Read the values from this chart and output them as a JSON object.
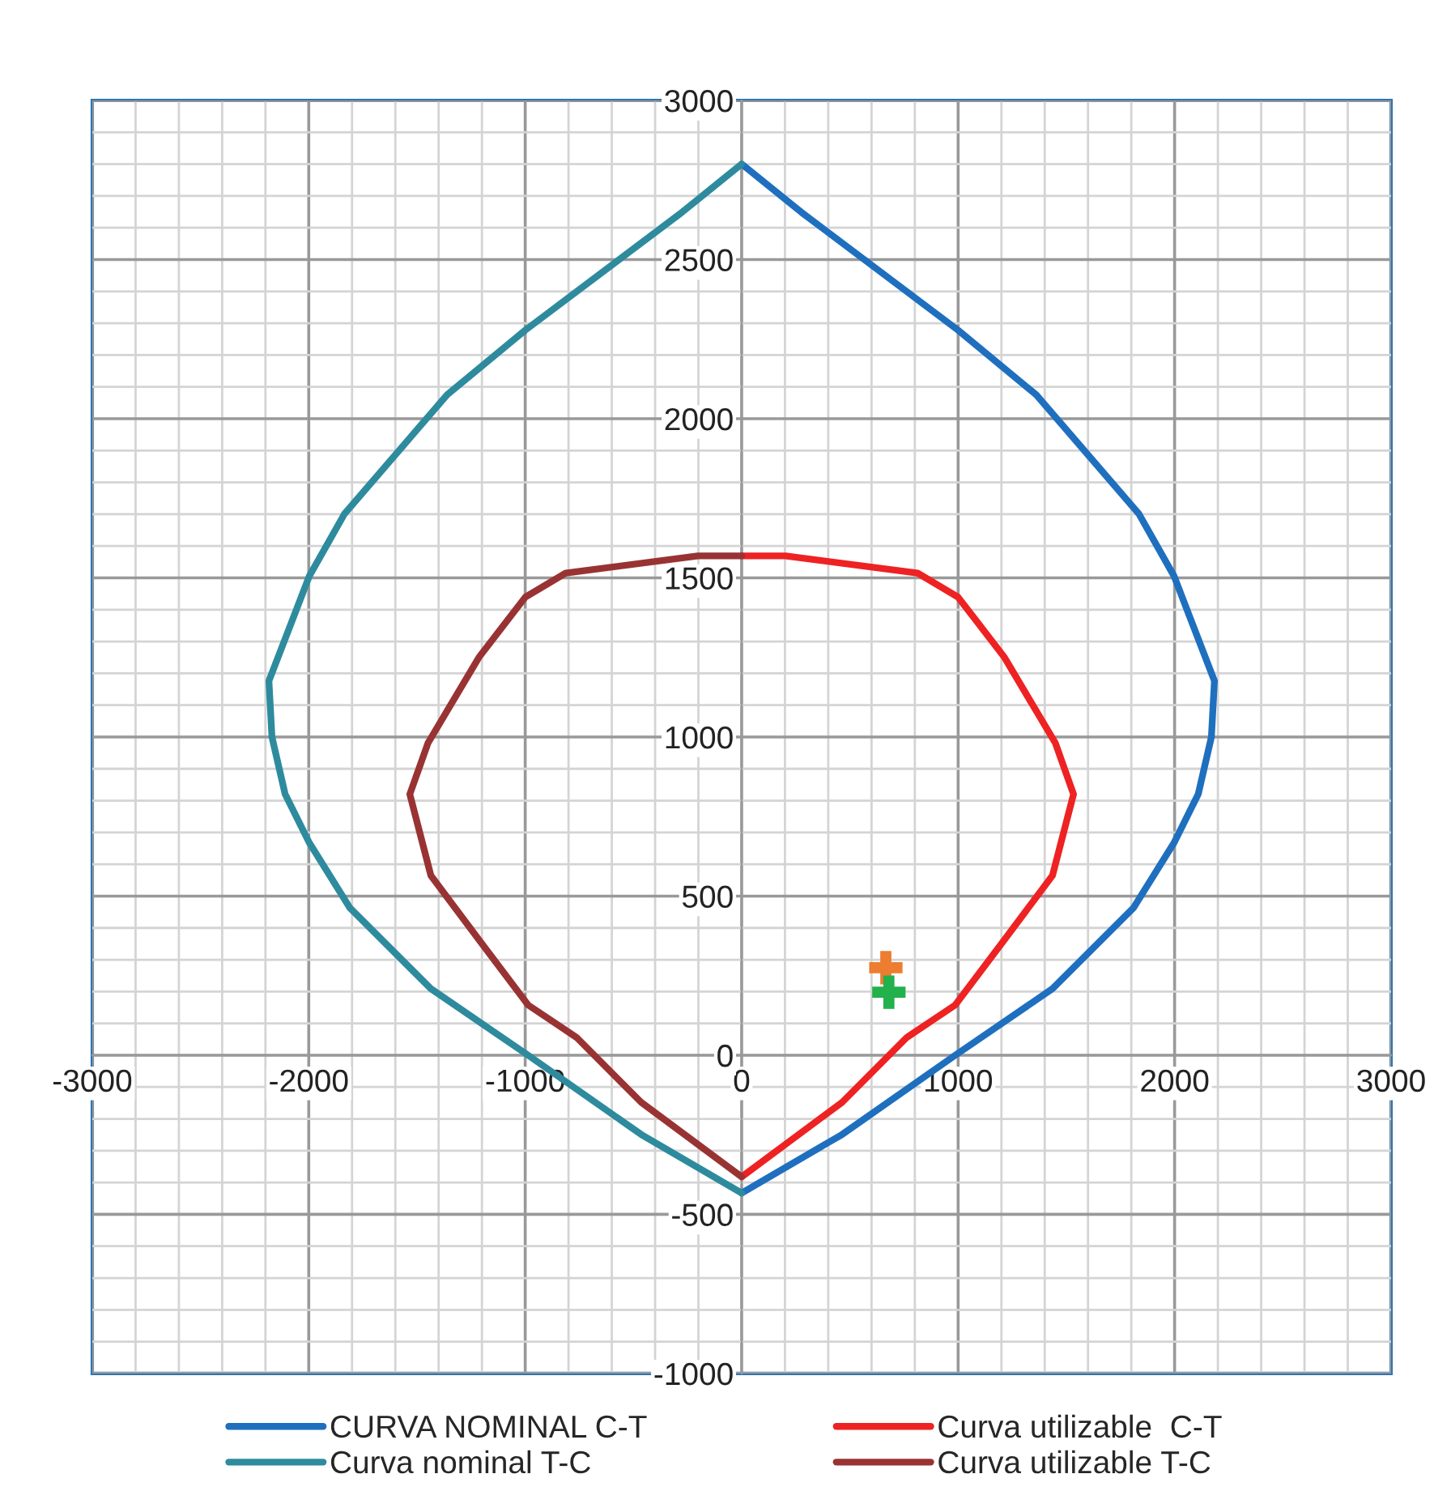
{
  "chart_data": {
    "type": "line",
    "xlim": [
      -3000,
      3000
    ],
    "ylim": [
      -1000,
      3000
    ],
    "xticks": [
      -3000,
      {
        "value": -2800,
        "label": null
      },
      {
        "value": -2600,
        "label": null
      },
      {
        "value": -2400,
        "label": null
      },
      {
        "value": -2200,
        "label": null
      },
      -2000,
      {
        "value": -1800,
        "label": null
      },
      {
        "value": -1600,
        "label": null
      },
      {
        "value": -1400,
        "label": null
      },
      {
        "value": -1200,
        "label": null
      },
      -1000,
      {
        "value": -800,
        "label": null
      },
      {
        "value": -600,
        "label": null
      },
      {
        "value": -400,
        "label": null
      },
      {
        "value": -200,
        "label": null
      },
      0,
      {
        "value": 200,
        "label": null
      },
      {
        "value": 400,
        "label": null
      },
      {
        "value": 600,
        "label": null
      },
      {
        "value": 800,
        "label": null
      },
      1000,
      {
        "value": 1200,
        "label": null
      },
      {
        "value": 1400,
        "label": null
      },
      {
        "value": 1600,
        "label": null
      },
      {
        "value": 1800,
        "label": null
      },
      2000,
      {
        "value": 2200,
        "label": null
      },
      {
        "value": 2400,
        "label": null
      },
      {
        "value": 2600,
        "label": null
      },
      {
        "value": 2800,
        "label": null
      },
      3000
    ],
    "yticks": [
      -1000,
      {
        "value": -900,
        "label": null
      },
      {
        "value": -800,
        "label": null
      },
      {
        "value": -700,
        "label": null
      },
      {
        "value": -600,
        "label": null
      },
      -500,
      {
        "value": -400,
        "label": null
      },
      {
        "value": -300,
        "label": null
      },
      {
        "value": -200,
        "label": null
      },
      {
        "value": -100,
        "label": null
      },
      0,
      {
        "value": 100,
        "label": null
      },
      {
        "value": 200,
        "label": null
      },
      {
        "value": 300,
        "label": null
      },
      {
        "value": 400,
        "label": null
      },
      500,
      {
        "value": 600,
        "label": null
      },
      {
        "value": 700,
        "label": null
      },
      {
        "value": 800,
        "label": null
      },
      {
        "value": 900,
        "label": null
      },
      1000,
      {
        "value": 1100,
        "label": null
      },
      {
        "value": 1200,
        "label": null
      },
      {
        "value": 1300,
        "label": null
      },
      {
        "value": 1400,
        "label": null
      },
      1500,
      {
        "value": 1600,
        "label": null
      },
      {
        "value": 1700,
        "label": null
      },
      {
        "value": 1800,
        "label": null
      },
      {
        "value": 1900,
        "label": null
      },
      2000,
      {
        "value": 2100,
        "label": null
      },
      {
        "value": 2200,
        "label": null
      },
      {
        "value": 2300,
        "label": null
      },
      {
        "value": 2400,
        "label": null
      },
      2500,
      {
        "value": 2600,
        "label": null
      },
      {
        "value": 2700,
        "label": null
      },
      {
        "value": 2800,
        "label": null
      },
      {
        "value": 2900,
        "label": null
      },
      3000
    ],
    "grid": true,
    "legend": "bottom",
    "marker": "none",
    "line_style": "solid",
    "series": [
      {
        "name": "CURVA NOMINAL C-T",
        "color": "#1f6fbf",
        "x": [
          0,
          277,
          1000,
          1361,
          1835,
          1997,
          2184,
          2170,
          2109,
          1997,
          1810,
          1436,
          987,
          464,
          0
        ],
        "values": [
          2800,
          2648,
          2278,
          2075,
          1701,
          1506,
          1176,
          1000,
          820,
          667,
          463,
          209,
          0,
          -249,
          -433
        ]
      },
      {
        "name": "Curva nominal T-C",
        "color": "#2e8b9e",
        "x": [
          0,
          -277,
          -1000,
          -1361,
          -1835,
          -1997,
          -2184,
          -2170,
          -2109,
          -1997,
          -1810,
          -1436,
          -987,
          -464,
          0
        ],
        "values": [
          2800,
          2648,
          2278,
          2075,
          1701,
          1506,
          1176,
          1000,
          820,
          667,
          463,
          209,
          0,
          -249,
          -433
        ]
      },
      {
        "name": "Curva utilizable  C-T",
        "color": "#ee2222",
        "x": [
          0,
          202,
          813,
          1000,
          1212,
          1449,
          1533,
          1436,
          1212,
          987,
          763,
          464,
          0
        ],
        "values": [
          1569,
          1569,
          1515,
          1439,
          1252,
          981,
          820,
          565,
          361,
          158,
          56,
          -148,
          -382
        ]
      },
      {
        "name": "Curva utilizable T-C",
        "color": "#993333",
        "x": [
          0,
          -202,
          -813,
          -1000,
          -1212,
          -1449,
          -1533,
          -1436,
          -1212,
          -987,
          -763,
          -464,
          0
        ],
        "values": [
          1569,
          1569,
          1515,
          1439,
          1252,
          981,
          820,
          565,
          361,
          158,
          56,
          -148,
          -382
        ]
      },
      {
        "type": "scatter",
        "marker": "cross",
        "color": "#ed7d31",
        "x": [
          666
        ],
        "values": [
          275
        ]
      },
      {
        "type": "scatter",
        "marker": "cross",
        "color": "#22b14c",
        "x": [
          680
        ],
        "values": [
          198
        ]
      }
    ]
  }
}
